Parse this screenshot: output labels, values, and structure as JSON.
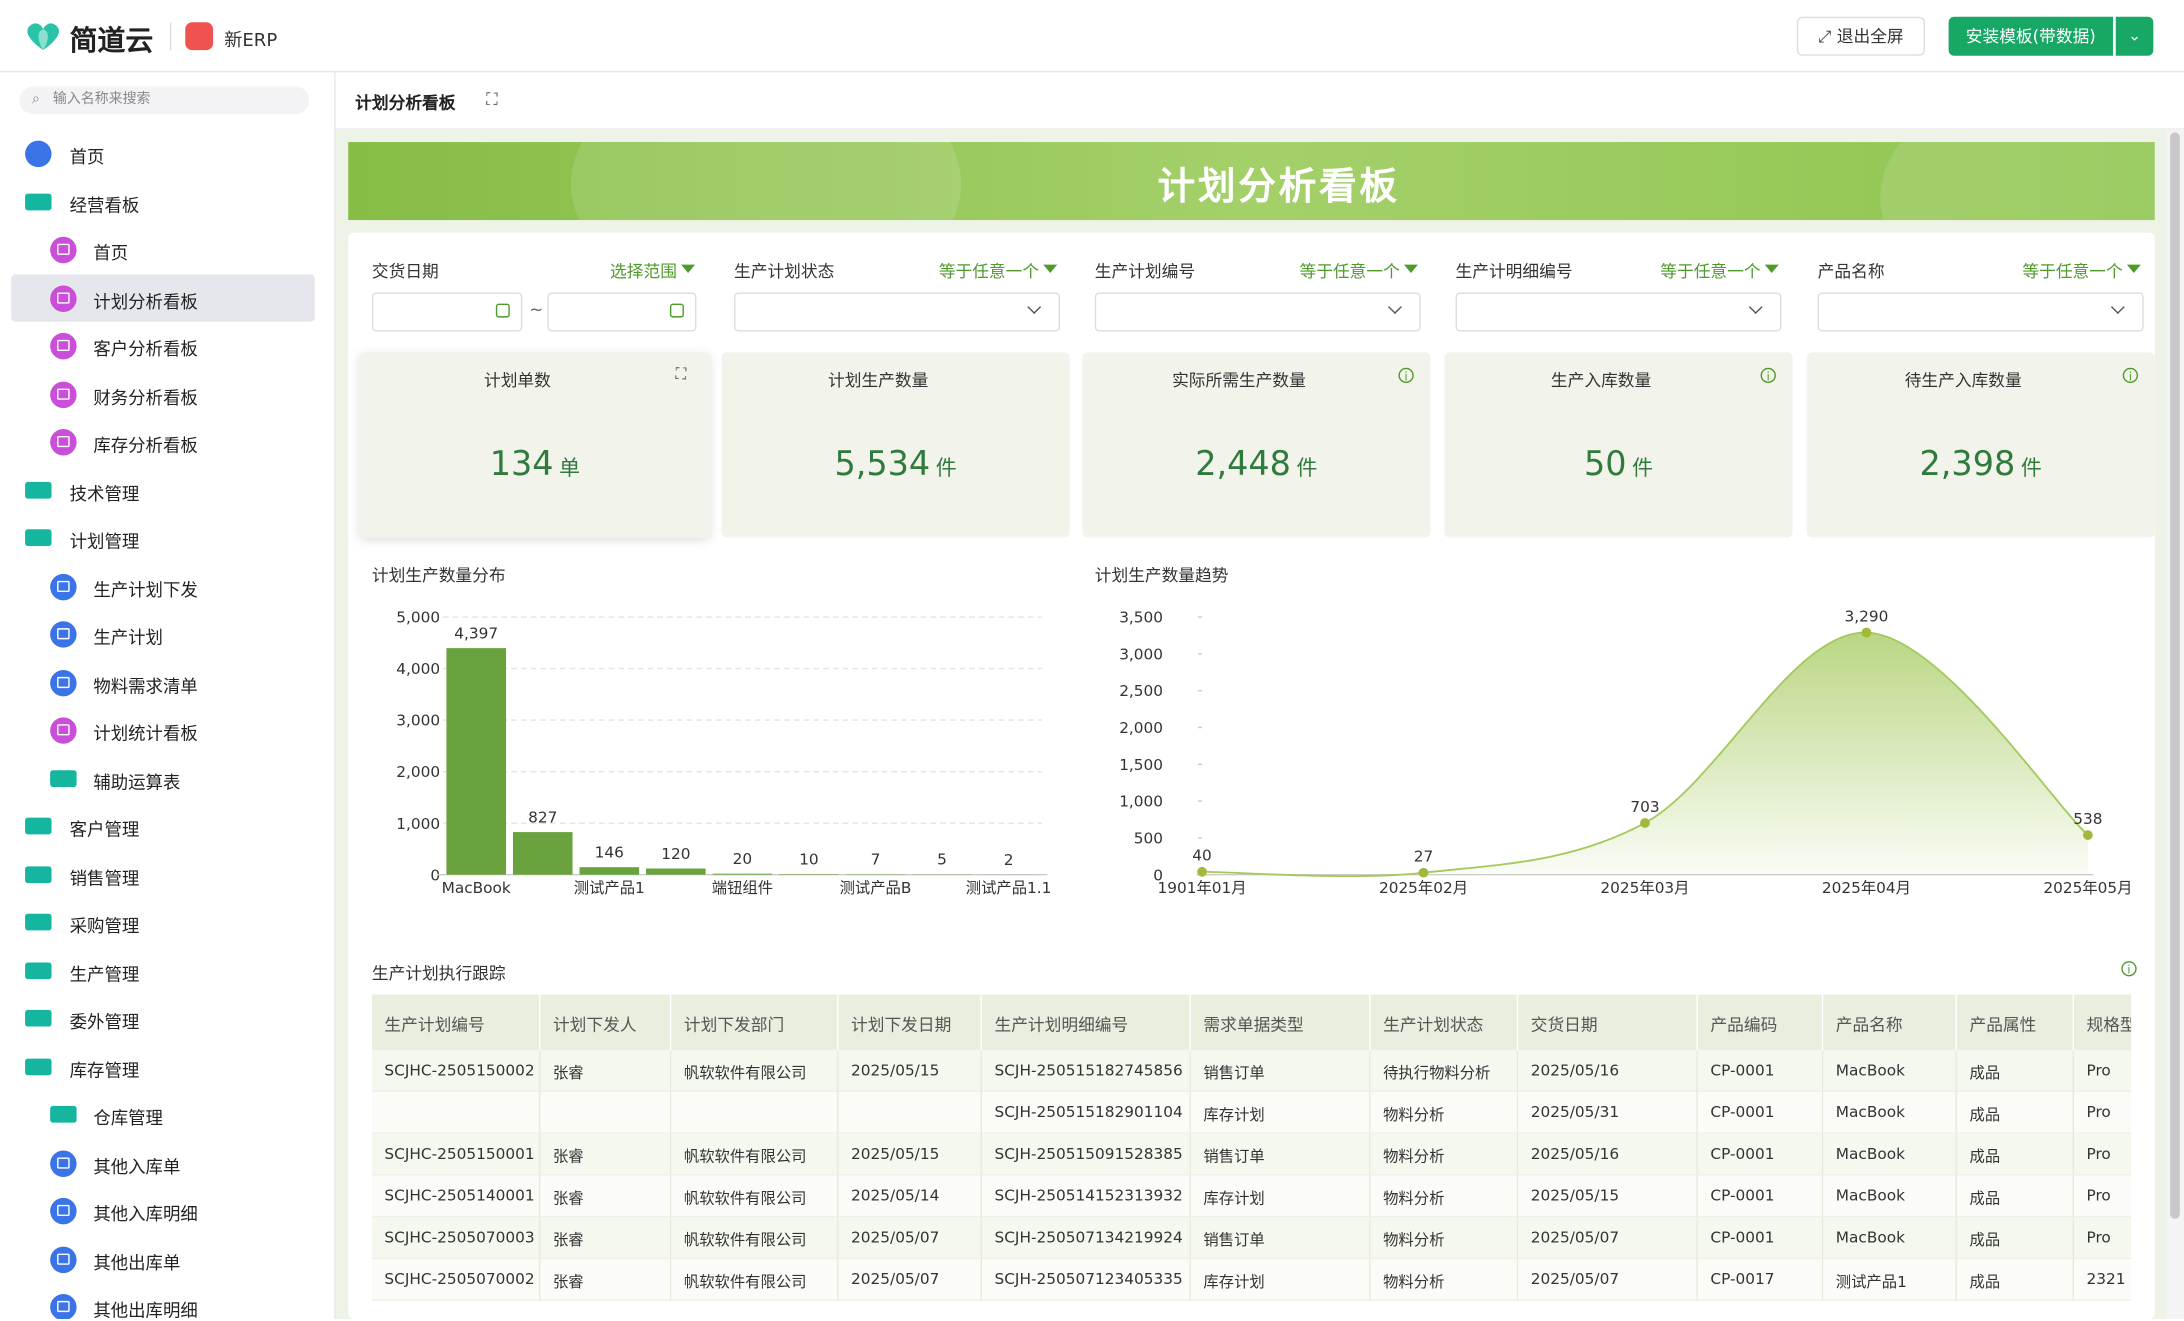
{
  "header": {
    "logo": "简道云",
    "app": "新ERP",
    "exit_button": "退出全屏",
    "install_button": "安装模板(带数据)"
  },
  "sidebar": {
    "search_placeholder": "输入名称来搜索",
    "items": [
      {
        "label": "首页",
        "level": 0,
        "icon": "home"
      },
      {
        "label": "经营看板",
        "level": 0,
        "icon": "folder"
      },
      {
        "label": "首页",
        "level": 1,
        "icon": "dash"
      },
      {
        "label": "计划分析看板",
        "level": 1,
        "icon": "dash",
        "active": true
      },
      {
        "label": "客户分析看板",
        "level": 1,
        "icon": "dash"
      },
      {
        "label": "财务分析看板",
        "level": 1,
        "icon": "dash"
      },
      {
        "label": "库存分析看板",
        "level": 1,
        "icon": "dash"
      },
      {
        "label": "技术管理",
        "level": 0,
        "icon": "folder"
      },
      {
        "label": "计划管理",
        "level": 0,
        "icon": "folder"
      },
      {
        "label": "生产计划下发",
        "level": 1,
        "icon": "form"
      },
      {
        "label": "生产计划",
        "level": 1,
        "icon": "form"
      },
      {
        "label": "物料需求清单",
        "level": 1,
        "icon": "form"
      },
      {
        "label": "计划统计看板",
        "level": 1,
        "icon": "dash"
      },
      {
        "label": "辅助运算表",
        "level": 1,
        "icon": "folder"
      },
      {
        "label": "客户管理",
        "level": 0,
        "icon": "folder"
      },
      {
        "label": "销售管理",
        "level": 0,
        "icon": "folder"
      },
      {
        "label": "采购管理",
        "level": 0,
        "icon": "folder"
      },
      {
        "label": "生产管理",
        "level": 0,
        "icon": "folder"
      },
      {
        "label": "委外管理",
        "level": 0,
        "icon": "folder"
      },
      {
        "label": "库存管理",
        "level": 0,
        "icon": "folder"
      },
      {
        "label": "仓库管理",
        "level": 1,
        "icon": "folder"
      },
      {
        "label": "其他入库单",
        "level": 1,
        "icon": "form"
      },
      {
        "label": "其他入库明细",
        "level": 1,
        "icon": "form"
      },
      {
        "label": "其他出库单",
        "level": 1,
        "icon": "form"
      },
      {
        "label": "其他出库明细",
        "level": 1,
        "icon": "form"
      }
    ]
  },
  "tab": {
    "title": "计划分析看板"
  },
  "banner": {
    "title": "计划分析看板"
  },
  "filters": [
    {
      "label": "交货日期",
      "mode": "选择范围",
      "range": true,
      "separator": "~"
    },
    {
      "label": "生产计划状态",
      "mode": "等于任意一个"
    },
    {
      "label": "生产计划编号",
      "mode": "等于任意一个"
    },
    {
      "label": "生产计明细编号",
      "mode": "等于任意一个"
    },
    {
      "label": "产品名称",
      "mode": "等于任意一个"
    }
  ],
  "kpis": [
    {
      "title": "计划单数",
      "value": "134",
      "unit": "单"
    },
    {
      "title": "计划生产数量",
      "value": "5,534",
      "unit": "件"
    },
    {
      "title": "实际所需生产数量",
      "value": "2,448",
      "unit": "件",
      "info": true
    },
    {
      "title": "生产入库数量",
      "value": "50",
      "unit": "件",
      "info": true
    },
    {
      "title": "待生产入库数量",
      "value": "2,398",
      "unit": "件",
      "info": true
    }
  ],
  "chart_data": [
    {
      "type": "bar",
      "title": "计划生产数量分布",
      "categories": [
        "MacBook",
        null,
        "测试产品1",
        null,
        "端钮组件",
        null,
        "测试产品B",
        null,
        "测试产品1.1"
      ],
      "values": [
        4397,
        827,
        146,
        120,
        20,
        10,
        7,
        5,
        2
      ],
      "value_labels": [
        "4,397",
        "827",
        "146",
        "120",
        "20",
        "10",
        "7",
        "5",
        "2"
      ],
      "color": "#6aa23e",
      "ylim": [
        0,
        5000
      ],
      "yticks": [
        0,
        {
          "value": 1000,
          "label": "1,000"
        },
        {
          "value": 2000,
          "label": "2,000"
        },
        {
          "value": 3000,
          "label": "3,000"
        },
        {
          "value": 4000,
          "label": "4,000"
        },
        {
          "value": 5000,
          "label": "5,000"
        }
      ],
      "grid": true
    },
    {
      "type": "line",
      "title": "计划生产数量趋势",
      "categories": [
        "1901年01月",
        "2025年02月",
        "2025年03月",
        "2025年04月",
        "2025年05月"
      ],
      "values": [
        40,
        27,
        703,
        3290,
        538
      ],
      "value_labels": [
        "40",
        "27",
        "703",
        "3,290",
        "538"
      ],
      "color": "#a3c95a",
      "area": true,
      "ylim": [
        0,
        3500
      ],
      "yticks": [
        0,
        500,
        {
          "value": 1000,
          "label": "1,000"
        },
        {
          "value": 1500,
          "label": "1,500"
        },
        {
          "value": 2000,
          "label": "2,000"
        },
        {
          "value": 2500,
          "label": "2,500"
        },
        {
          "value": 3000,
          "label": "3,000"
        },
        {
          "value": 3500,
          "label": "3,500"
        }
      ],
      "grid": false
    }
  ],
  "table": {
    "title": "生产计划执行跟踪",
    "columns": [
      "生产计划编号",
      "计划下发人",
      "计划下发部门",
      "计划下发日期",
      "生产计划明细编号",
      "需求单据类型",
      "生产计划状态",
      "交货日期",
      "产品编码",
      "产品名称",
      "产品属性",
      "规格型号"
    ],
    "rows": [
      [
        "SCJHC-2505150002",
        "张睿",
        "帆软软件有限公司",
        "2025/05/15",
        "SCJH-250515182745856",
        "销售订单",
        "待执行物料分析",
        "2025/05/16",
        "CP-0001",
        "MacBook",
        "成品",
        "Pro"
      ],
      [
        null,
        null,
        null,
        null,
        "SCJH-250515182901104",
        "库存计划",
        "物料分析",
        "2025/05/31",
        "CP-0001",
        "MacBook",
        "成品",
        "Pro"
      ],
      [
        "SCJHC-2505150001",
        "张睿",
        "帆软软件有限公司",
        "2025/05/15",
        "SCJH-250515091528385",
        "销售订单",
        "物料分析",
        "2025/05/16",
        "CP-0001",
        "MacBook",
        "成品",
        "Pro"
      ],
      [
        "SCJHC-2505140001",
        "张睿",
        "帆软软件有限公司",
        "2025/05/14",
        "SCJH-250514152313932",
        "库存计划",
        "物料分析",
        "2025/05/15",
        "CP-0001",
        "MacBook",
        "成品",
        "Pro"
      ],
      [
        "SCJHC-2505070003",
        "张睿",
        "帆软软件有限公司",
        "2025/05/07",
        "SCJH-250507134219924",
        "销售订单",
        "物料分析",
        "2025/05/07",
        "CP-0001",
        "MacBook",
        "成品",
        "Pro"
      ],
      [
        "SCJHC-2505070002",
        "张睿",
        "帆软软件有限公司",
        "2025/05/07",
        "SCJH-250507123405335",
        "库存计划",
        "物料分析",
        "2025/05/07",
        "CP-0017",
        "测试产品1",
        "成品",
        "2321"
      ]
    ]
  }
}
